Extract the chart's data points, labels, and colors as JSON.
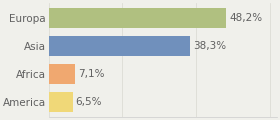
{
  "categories": [
    "America",
    "Africa",
    "Asia",
    "Europa"
  ],
  "values": [
    6.5,
    7.1,
    38.3,
    48.2
  ],
  "labels": [
    "6,5%",
    "7,1%",
    "38,3%",
    "48,2%"
  ],
  "bar_colors": [
    "#f0d878",
    "#f0a870",
    "#7090bc",
    "#b0c080"
  ],
  "background_color": "#f0f0eb",
  "xlim": [
    0,
    62
  ],
  "bar_height": 0.72,
  "label_fontsize": 7.5,
  "tick_fontsize": 7.5,
  "text_color": "#606060"
}
